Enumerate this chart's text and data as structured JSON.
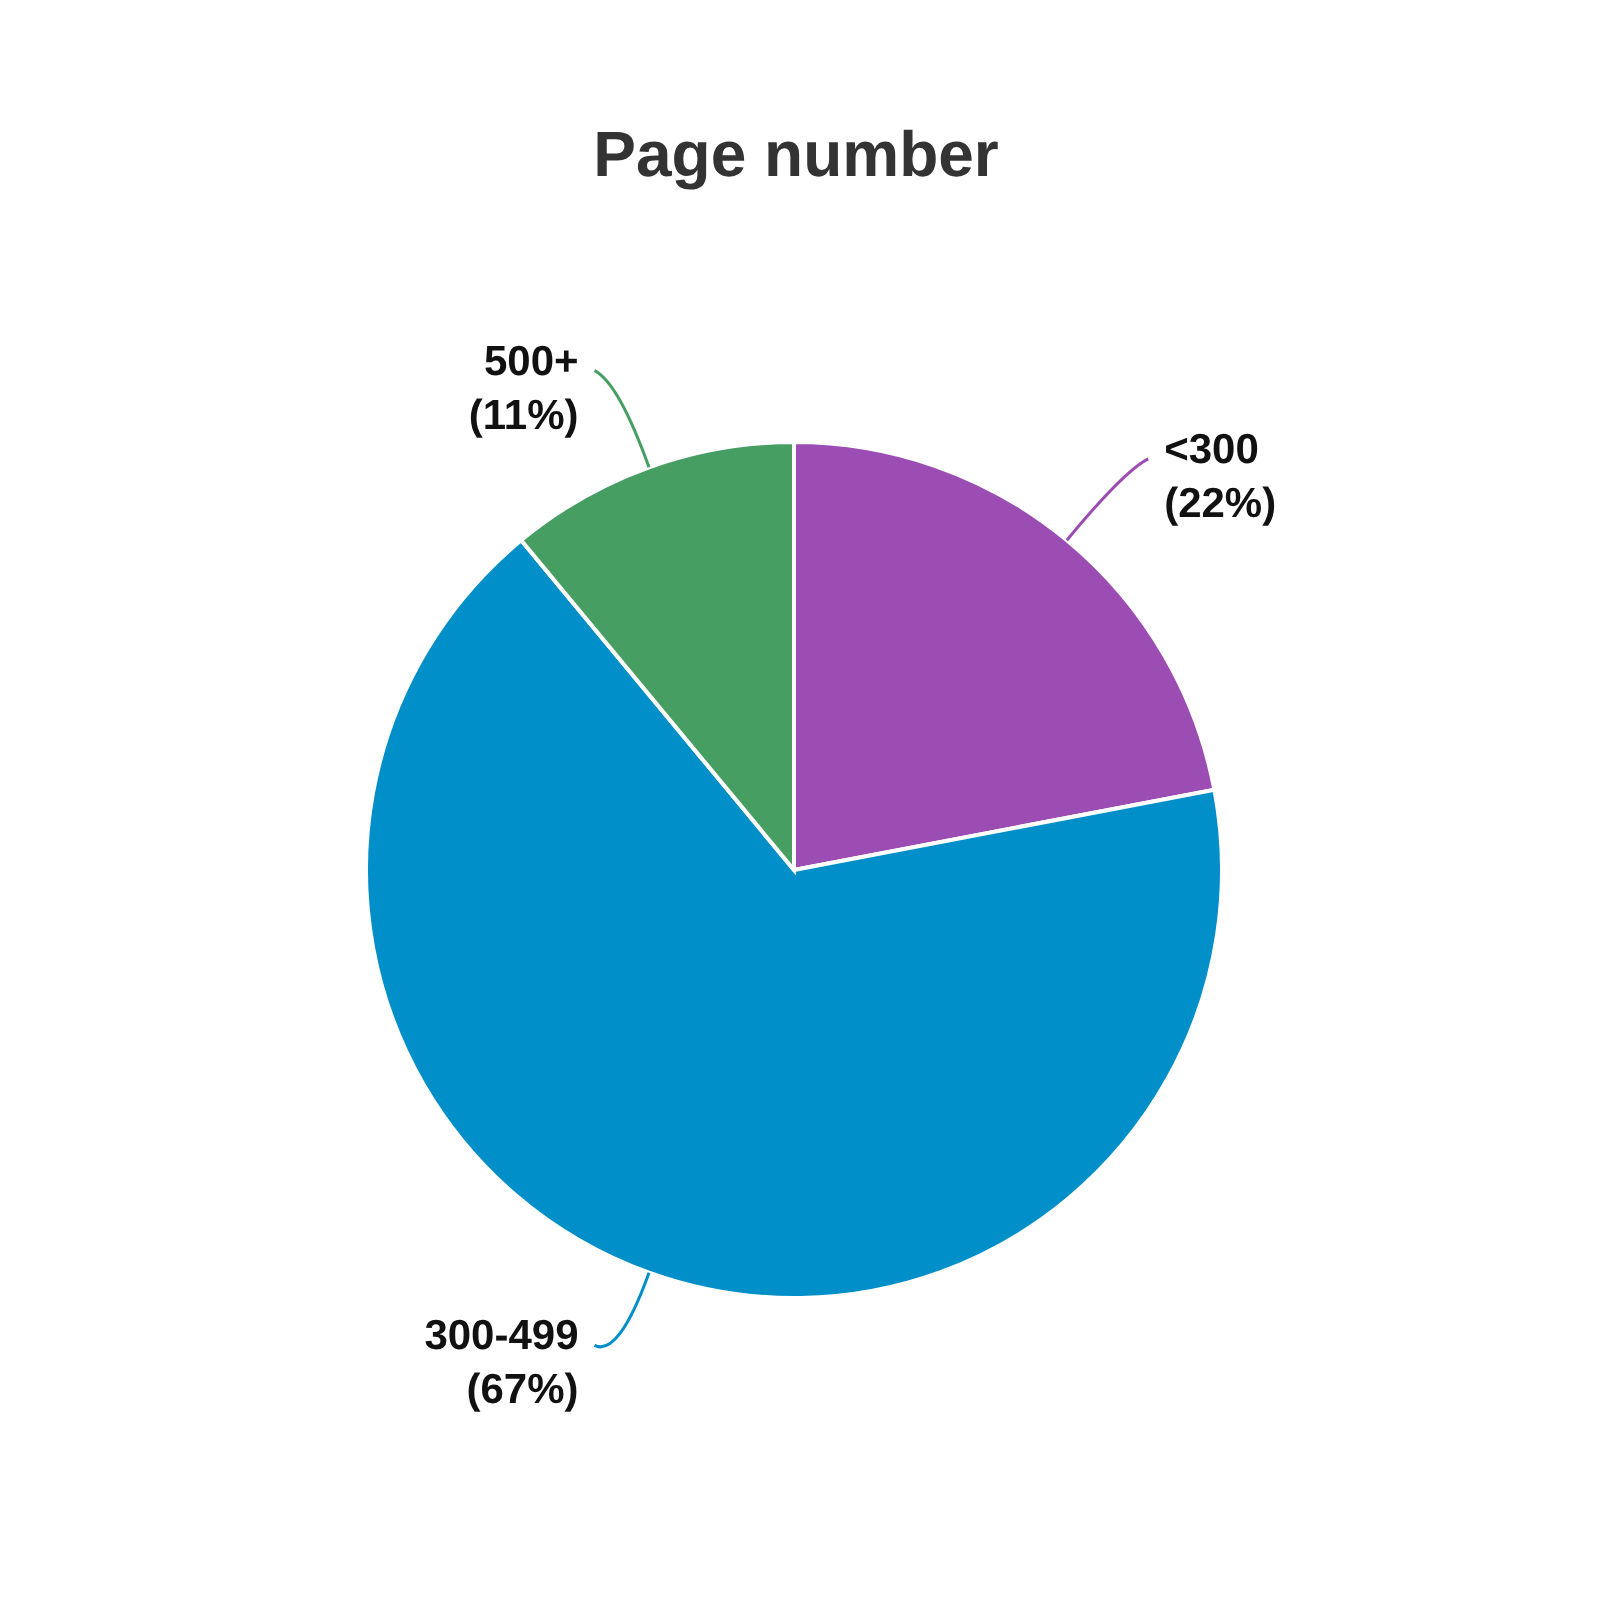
{
  "chart_data": {
    "type": "pie",
    "title": "Page number",
    "categories": [
      "<300",
      "300-499",
      "500+"
    ],
    "values": [
      22,
      67,
      11
    ],
    "colors": [
      "#9b4db3",
      "#008fc8",
      "#479e63"
    ],
    "value_labels": [
      "(22%)",
      "(67%)",
      "(11%)"
    ],
    "legend": false
  }
}
